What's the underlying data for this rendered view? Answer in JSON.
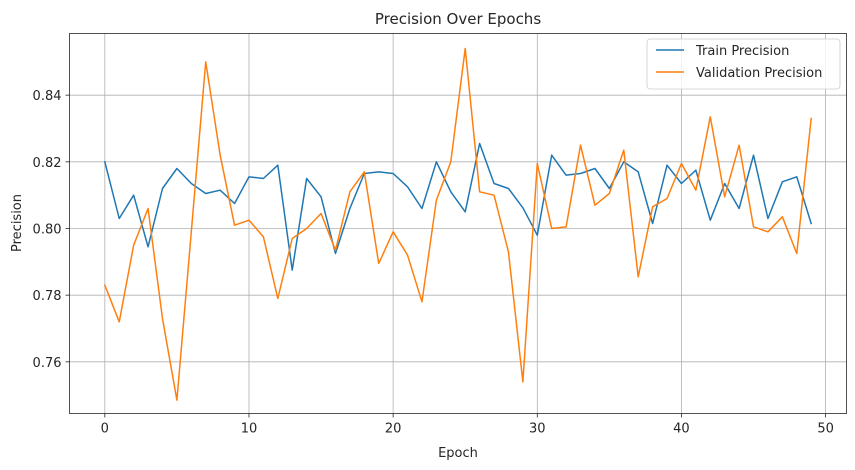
{
  "chart_data": {
    "type": "line",
    "title": "Precision Over Epochs",
    "xlabel": "Epoch",
    "ylabel": "Precision",
    "xlim": [
      -2.45,
      51.45
    ],
    "ylim": [
      0.7445,
      0.8585
    ],
    "xticks": [
      0,
      10,
      20,
      30,
      40,
      50
    ],
    "yticks": [
      0.76,
      0.78,
      0.8,
      0.82,
      0.84
    ],
    "ytick_labels": [
      "0.76",
      "0.78",
      "0.80",
      "0.82",
      "0.84"
    ],
    "grid": true,
    "legend_position": "top-right",
    "x": [
      0,
      1,
      2,
      3,
      4,
      5,
      6,
      7,
      8,
      9,
      10,
      11,
      12,
      13,
      14,
      15,
      16,
      17,
      18,
      19,
      20,
      21,
      22,
      23,
      24,
      25,
      26,
      27,
      28,
      29,
      30,
      31,
      32,
      33,
      34,
      35,
      36,
      37,
      38,
      39,
      40,
      41,
      42,
      43,
      44,
      45,
      46,
      47,
      48,
      49
    ],
    "series": [
      {
        "name": "Train Precision",
        "color": "#1f77b4",
        "values": [
          0.82,
          0.803,
          0.81,
          0.7945,
          0.812,
          0.818,
          0.8135,
          0.8105,
          0.8115,
          0.8075,
          0.8155,
          0.815,
          0.819,
          0.7875,
          0.815,
          0.8095,
          0.7925,
          0.806,
          0.8165,
          0.817,
          0.8165,
          0.8125,
          0.806,
          0.82,
          0.811,
          0.805,
          0.8255,
          0.8135,
          0.812,
          0.8062,
          0.798,
          0.822,
          0.816,
          0.8165,
          0.818,
          0.812,
          0.82,
          0.817,
          0.8015,
          0.819,
          0.8135,
          0.8175,
          0.8025,
          0.8135,
          0.806,
          0.822,
          0.803,
          0.814,
          0.8155,
          0.8015
        ]
      },
      {
        "name": "Validation Precision",
        "color": "#ff7f0e",
        "values": [
          0.783,
          0.772,
          0.795,
          0.806,
          0.773,
          0.7485,
          0.799,
          0.85,
          0.822,
          0.801,
          0.8025,
          0.7975,
          0.779,
          0.797,
          0.8,
          0.8045,
          0.7935,
          0.811,
          0.817,
          0.7895,
          0.799,
          0.792,
          0.778,
          0.8085,
          0.82,
          0.854,
          0.811,
          0.81,
          0.793,
          0.754,
          0.8195,
          0.8,
          0.8005,
          0.825,
          0.807,
          0.8105,
          0.8235,
          0.7855,
          0.8065,
          0.809,
          0.8195,
          0.8115,
          0.8335,
          0.8095,
          0.825,
          0.8005,
          0.799,
          0.8035,
          0.7925,
          0.833
        ]
      }
    ]
  }
}
